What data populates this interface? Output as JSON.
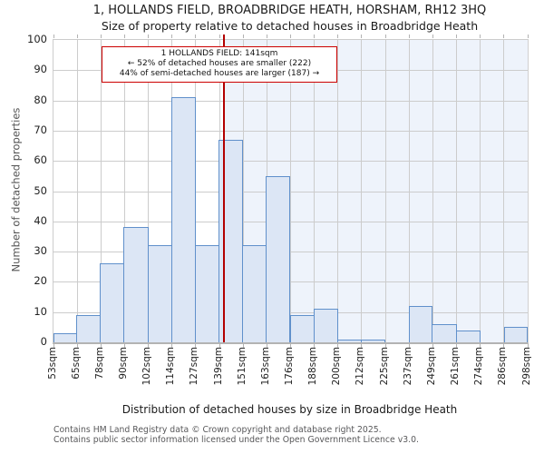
{
  "chart_data": {
    "type": "bar",
    "title": "1, HOLLANDS FIELD, BROADBRIDGE HEATH, HORSHAM, RH12 3HQ",
    "subtitle": "Size of property relative to detached houses in Broadbridge Heath",
    "xlabel": "Distribution of detached houses by size in Broadbridge Heath",
    "ylabel": "Number of detached properties",
    "ylim": [
      0,
      100
    ],
    "yticks": [
      0,
      10,
      20,
      30,
      40,
      50,
      60,
      70,
      80,
      90,
      100
    ],
    "grid": true,
    "bin_edges_sqm": [
      53,
      65,
      78,
      90,
      102,
      114,
      127,
      139,
      151,
      163,
      176,
      188,
      200,
      212,
      225,
      237,
      249,
      261,
      274,
      286,
      298
    ],
    "bin_labels": [
      "53sqm",
      "65sqm",
      "78sqm",
      "90sqm",
      "102sqm",
      "114sqm",
      "127sqm",
      "139sqm",
      "151sqm",
      "163sqm",
      "176sqm",
      "188sqm",
      "200sqm",
      "212sqm",
      "225sqm",
      "237sqm",
      "249sqm",
      "261sqm",
      "274sqm",
      "286sqm",
      "298sqm"
    ],
    "values": [
      3,
      9,
      26,
      38,
      32,
      81,
      32,
      67,
      32,
      55,
      9,
      11,
      1,
      1,
      0,
      12,
      6,
      4,
      0,
      5
    ],
    "marker": {
      "value_sqm": 141,
      "shaded_region": "right-of-marker",
      "label_lines": [
        "1 HOLLANDS FIELD: 141sqm",
        "← 52% of detached houses are smaller (222)",
        "44% of semi-detached houses are larger (187) →"
      ]
    }
  },
  "footer": {
    "lines": [
      "Contains HM Land Registry data © Crown copyright and database right 2025.",
      "Contains public sector information licensed under the Open Government Licence v3.0."
    ]
  },
  "colors": {
    "bar_fill": "#dce6f5",
    "bar_border": "#6090cb",
    "marker_line": "#b30000",
    "annotation_border": "#cc0000",
    "shade_region": "#eef3fb",
    "gridline": "#cccccc",
    "axis_line": "#b3b3b3",
    "title_text": "#1a1a1a",
    "footer_text": "#58585a",
    "yaxis_title_text": "#555555"
  }
}
